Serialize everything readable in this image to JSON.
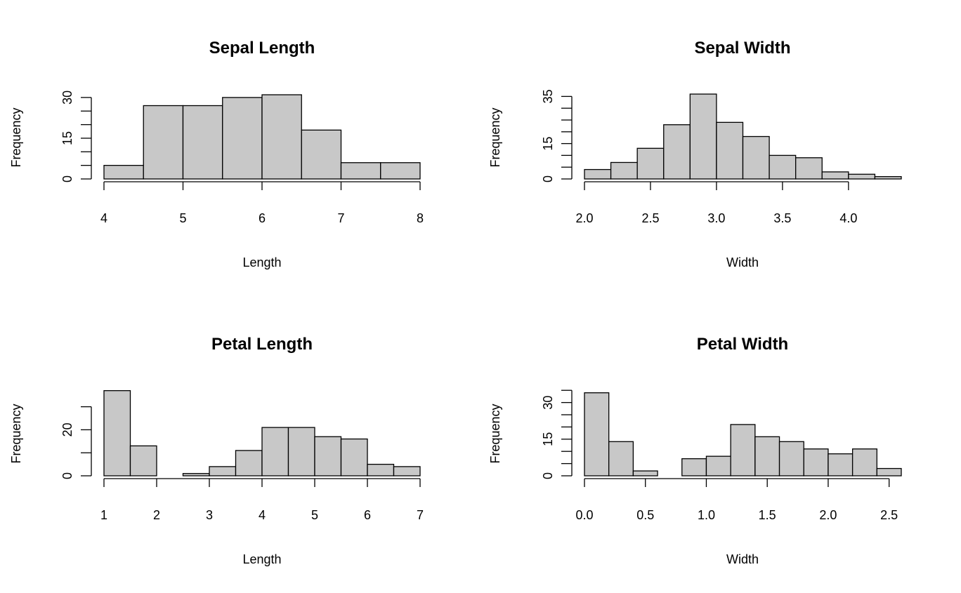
{
  "colors": {
    "bar_fill": "#c8c8c8",
    "bar_stroke": "#000000",
    "background": "#ffffff"
  },
  "chart_data": [
    {
      "type": "bar",
      "title": "Sepal Length",
      "xlabel": "Length",
      "ylabel": "Frequency",
      "bin_edges": [
        4,
        4.5,
        5,
        5.5,
        6,
        6.5,
        7,
        7.5,
        8
      ],
      "values": [
        5,
        27,
        27,
        30,
        31,
        18,
        6,
        6
      ],
      "xlim": [
        4,
        8
      ],
      "xticks": [
        4,
        5,
        6,
        7,
        8
      ],
      "xtick_labels": [
        "4",
        "5",
        "6",
        "7",
        "8"
      ],
      "yticks": [
        0,
        5,
        10,
        15,
        20,
        25,
        30
      ],
      "ytick_labels": [
        "0",
        "",
        "",
        "15",
        "",
        "",
        "30"
      ],
      "ylim": [
        0,
        31
      ],
      "grid": false
    },
    {
      "type": "bar",
      "title": "Sepal Width",
      "xlabel": "Width",
      "ylabel": "Frequency",
      "bin_edges": [
        2.0,
        2.2,
        2.4,
        2.6,
        2.8,
        3.0,
        3.2,
        3.4,
        3.6,
        3.8,
        4.0,
        4.2,
        4.4
      ],
      "values": [
        4,
        7,
        13,
        23,
        36,
        24,
        18,
        10,
        9,
        3,
        2,
        1
      ],
      "xlim": [
        2.0,
        4.4
      ],
      "xticks": [
        2.0,
        2.5,
        3.0,
        3.5,
        4.0
      ],
      "xtick_labels": [
        "2.0",
        "2.5",
        "3.0",
        "3.5",
        "4.0"
      ],
      "yticks": [
        0,
        5,
        10,
        15,
        20,
        25,
        30,
        35
      ],
      "ytick_labels": [
        "0",
        "",
        "",
        "15",
        "",
        "",
        "",
        "35"
      ],
      "ylim": [
        0,
        36
      ],
      "grid": false
    },
    {
      "type": "bar",
      "title": "Petal Length",
      "xlabel": "Length",
      "ylabel": "Frequency",
      "bin_edges": [
        1,
        1.5,
        2,
        2.5,
        3,
        3.5,
        4,
        4.5,
        5,
        5.5,
        6,
        6.5,
        7
      ],
      "values": [
        37,
        13,
        0,
        1,
        4,
        11,
        21,
        21,
        17,
        16,
        5,
        4
      ],
      "xlim": [
        1,
        7
      ],
      "xticks": [
        1,
        2,
        3,
        4,
        5,
        6,
        7
      ],
      "xtick_labels": [
        "1",
        "2",
        "3",
        "4",
        "5",
        "6",
        "7"
      ],
      "yticks": [
        0,
        10,
        20,
        30
      ],
      "ytick_labels": [
        "0",
        "",
        "20",
        ""
      ],
      "ylim": [
        0,
        37
      ],
      "grid": false
    },
    {
      "type": "bar",
      "title": "Petal Width",
      "xlabel": "Width",
      "ylabel": "Frequency",
      "bin_edges": [
        0.0,
        0.2,
        0.4,
        0.6,
        0.8,
        1.0,
        1.2,
        1.4,
        1.6,
        1.8,
        2.0,
        2.2,
        2.4,
        2.6
      ],
      "values": [
        34,
        14,
        2,
        0,
        7,
        8,
        21,
        16,
        14,
        11,
        9,
        11,
        3
      ],
      "xlim": [
        0.0,
        2.6
      ],
      "xticks": [
        0.0,
        0.5,
        1.0,
        1.5,
        2.0,
        2.5
      ],
      "xtick_labels": [
        "0.0",
        "0.5",
        "1.0",
        "1.5",
        "2.0",
        "2.5"
      ],
      "yticks": [
        0,
        5,
        10,
        15,
        20,
        25,
        30,
        35
      ],
      "ytick_labels": [
        "0",
        "",
        "",
        "15",
        "",
        "",
        "30",
        ""
      ],
      "ylim": [
        0,
        35
      ],
      "grid": false
    }
  ]
}
